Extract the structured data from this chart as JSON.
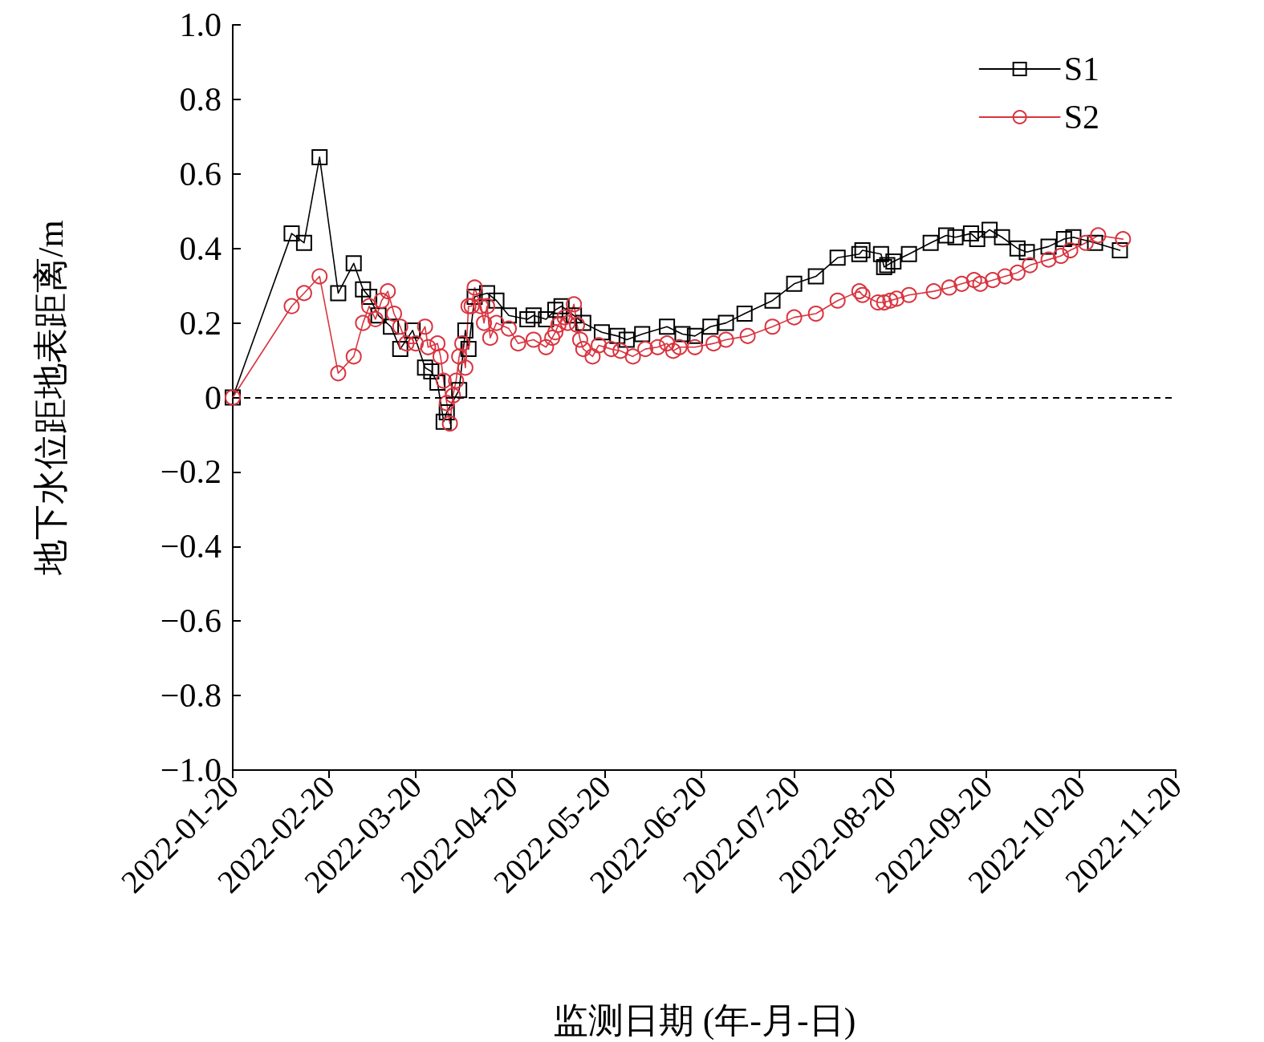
{
  "chart_data": {
    "type": "line",
    "xlabel": "监测日期 (年-月-日)",
    "ylabel": "地下水位距地表距离/m",
    "xlim": [
      "2022-01-20",
      "2022-11-20"
    ],
    "xticks": [
      "2022-01-20",
      "2022-02-20",
      "2022-03-20",
      "2022-04-20",
      "2022-05-20",
      "2022-06-20",
      "2022-07-20",
      "2022-08-20",
      "2022-09-20",
      "2022-10-20",
      "2022-11-20"
    ],
    "ylim": [
      -1,
      1
    ],
    "yticks": [
      {
        "value": -1,
        "label": "−1.0"
      },
      {
        "value": -0.8,
        "label": "−0.8"
      },
      {
        "value": -0.6,
        "label": "−0.6"
      },
      {
        "value": -0.4,
        "label": "−0.4"
      },
      {
        "value": -0.2,
        "label": "−0.2"
      },
      0,
      0.2,
      0.4,
      0.6,
      0.8,
      {
        "value": 1,
        "label": "1.0"
      }
    ],
    "grid": false,
    "legend": "top right",
    "ref_lines": [
      {
        "axis": "y",
        "value": 0,
        "label": null,
        "color": "#000000",
        "line_style": "dashed"
      }
    ],
    "series": [
      {
        "name": "S1",
        "color": "#000000",
        "marker": "square",
        "line_style": "solid",
        "x": [
          "2022-01-20",
          "2022-02-08",
          "2022-02-12",
          "2022-02-17",
          "2022-02-23",
          "2022-02-28",
          "2022-03-03",
          "2022-03-05",
          "2022-03-08",
          "2022-03-12",
          "2022-03-15",
          "2022-03-19",
          "2022-03-23",
          "2022-03-25",
          "2022-03-27",
          "2022-03-29",
          "2022-03-30",
          "2022-04-03",
          "2022-04-05",
          "2022-04-06",
          "2022-04-08",
          "2022-04-12",
          "2022-04-15",
          "2022-04-19",
          "2022-04-25",
          "2022-04-27",
          "2022-05-01",
          "2022-05-04",
          "2022-05-06",
          "2022-05-10",
          "2022-05-13",
          "2022-05-19",
          "2022-05-24",
          "2022-05-27",
          "2022-06-01",
          "2022-06-09",
          "2022-06-14",
          "2022-06-18",
          "2022-06-23",
          "2022-06-28",
          "2022-07-04",
          "2022-07-13",
          "2022-07-20",
          "2022-07-27",
          "2022-08-03",
          "2022-08-10",
          "2022-08-11",
          "2022-08-17",
          "2022-08-18",
          "2022-08-19",
          "2022-08-21",
          "2022-08-26",
          "2022-09-02",
          "2022-09-07",
          "2022-09-10",
          "2022-09-15",
          "2022-09-17",
          "2022-09-21",
          "2022-09-25",
          "2022-09-30",
          "2022-10-03",
          "2022-10-10",
          "2022-10-15",
          "2022-10-18",
          "2022-10-25",
          "2022-11-02"
        ],
        "values": [
          0,
          0.44,
          0.415,
          0.645,
          0.28,
          0.36,
          0.29,
          0.27,
          0.22,
          0.19,
          0.13,
          0.18,
          0.08,
          0.07,
          0.04,
          -0.065,
          -0.04,
          0.02,
          0.18,
          0.13,
          0.27,
          0.28,
          0.26,
          0.22,
          0.21,
          0.22,
          0.21,
          0.235,
          0.245,
          0.22,
          0.2,
          0.175,
          0.165,
          0.155,
          0.17,
          0.19,
          0.17,
          0.165,
          0.19,
          0.2,
          0.225,
          0.26,
          0.305,
          0.325,
          0.375,
          0.385,
          0.395,
          0.385,
          0.35,
          0.355,
          0.365,
          0.385,
          0.415,
          0.435,
          0.43,
          0.44,
          0.425,
          0.45,
          0.43,
          0.4,
          0.39,
          0.405,
          0.425,
          0.43,
          0.415,
          0.395
        ]
      },
      {
        "name": "S2",
        "color": "#d9343f",
        "marker": "circle",
        "line_style": "solid",
        "x": [
          "2022-01-20",
          "2022-02-08",
          "2022-02-12",
          "2022-02-17",
          "2022-02-23",
          "2022-02-28",
          "2022-03-03",
          "2022-03-05",
          "2022-03-07",
          "2022-03-09",
          "2022-03-11",
          "2022-03-13",
          "2022-03-15",
          "2022-03-17",
          "2022-03-20",
          "2022-03-23",
          "2022-03-24",
          "2022-03-27",
          "2022-03-28",
          "2022-03-29",
          "2022-03-30",
          "2022-03-31",
          "2022-04-01",
          "2022-04-02",
          "2022-04-03",
          "2022-04-04",
          "2022-04-05",
          "2022-04-06",
          "2022-04-07",
          "2022-04-08",
          "2022-04-10",
          "2022-04-11",
          "2022-04-12",
          "2022-04-13",
          "2022-04-15",
          "2022-04-19",
          "2022-04-22",
          "2022-04-27",
          "2022-05-01",
          "2022-05-03",
          "2022-05-04",
          "2022-05-05",
          "2022-05-07",
          "2022-05-08",
          "2022-05-10",
          "2022-05-11",
          "2022-05-12",
          "2022-05-13",
          "2022-05-16",
          "2022-05-18",
          "2022-05-22",
          "2022-05-25",
          "2022-05-29",
          "2022-06-02",
          "2022-06-06",
          "2022-06-09",
          "2022-06-11",
          "2022-06-13",
          "2022-06-18",
          "2022-06-24",
          "2022-06-28",
          "2022-07-05",
          "2022-07-13",
          "2022-07-20",
          "2022-07-27",
          "2022-08-03",
          "2022-08-10",
          "2022-08-11",
          "2022-08-16",
          "2022-08-18",
          "2022-08-20",
          "2022-08-22",
          "2022-08-26",
          "2022-09-03",
          "2022-09-08",
          "2022-09-12",
          "2022-09-16",
          "2022-09-18",
          "2022-09-22",
          "2022-09-26",
          "2022-09-30",
          "2022-10-04",
          "2022-10-10",
          "2022-10-14",
          "2022-10-17",
          "2022-10-22",
          "2022-10-26",
          "2022-11-03"
        ],
        "values": [
          0,
          0.245,
          0.28,
          0.325,
          0.065,
          0.11,
          0.2,
          0.245,
          0.21,
          0.26,
          0.285,
          0.225,
          0.19,
          0.145,
          0.145,
          0.19,
          0.135,
          0.145,
          0.11,
          0.045,
          -0.015,
          -0.07,
          0.005,
          0.045,
          0.11,
          0.145,
          0.08,
          0.245,
          0.245,
          0.295,
          0.245,
          0.2,
          0.245,
          0.16,
          0.2,
          0.185,
          0.145,
          0.155,
          0.135,
          0.16,
          0.175,
          0.195,
          0.215,
          0.2,
          0.25,
          0.195,
          0.155,
          0.13,
          0.11,
          0.14,
          0.13,
          0.125,
          0.11,
          0.13,
          0.135,
          0.145,
          0.125,
          0.135,
          0.135,
          0.145,
          0.155,
          0.165,
          0.19,
          0.215,
          0.225,
          0.26,
          0.285,
          0.275,
          0.255,
          0.255,
          0.26,
          0.265,
          0.275,
          0.285,
          0.295,
          0.305,
          0.315,
          0.305,
          0.315,
          0.325,
          0.335,
          0.355,
          0.37,
          0.38,
          0.395,
          0.415,
          0.435,
          0.425
        ]
      }
    ]
  }
}
